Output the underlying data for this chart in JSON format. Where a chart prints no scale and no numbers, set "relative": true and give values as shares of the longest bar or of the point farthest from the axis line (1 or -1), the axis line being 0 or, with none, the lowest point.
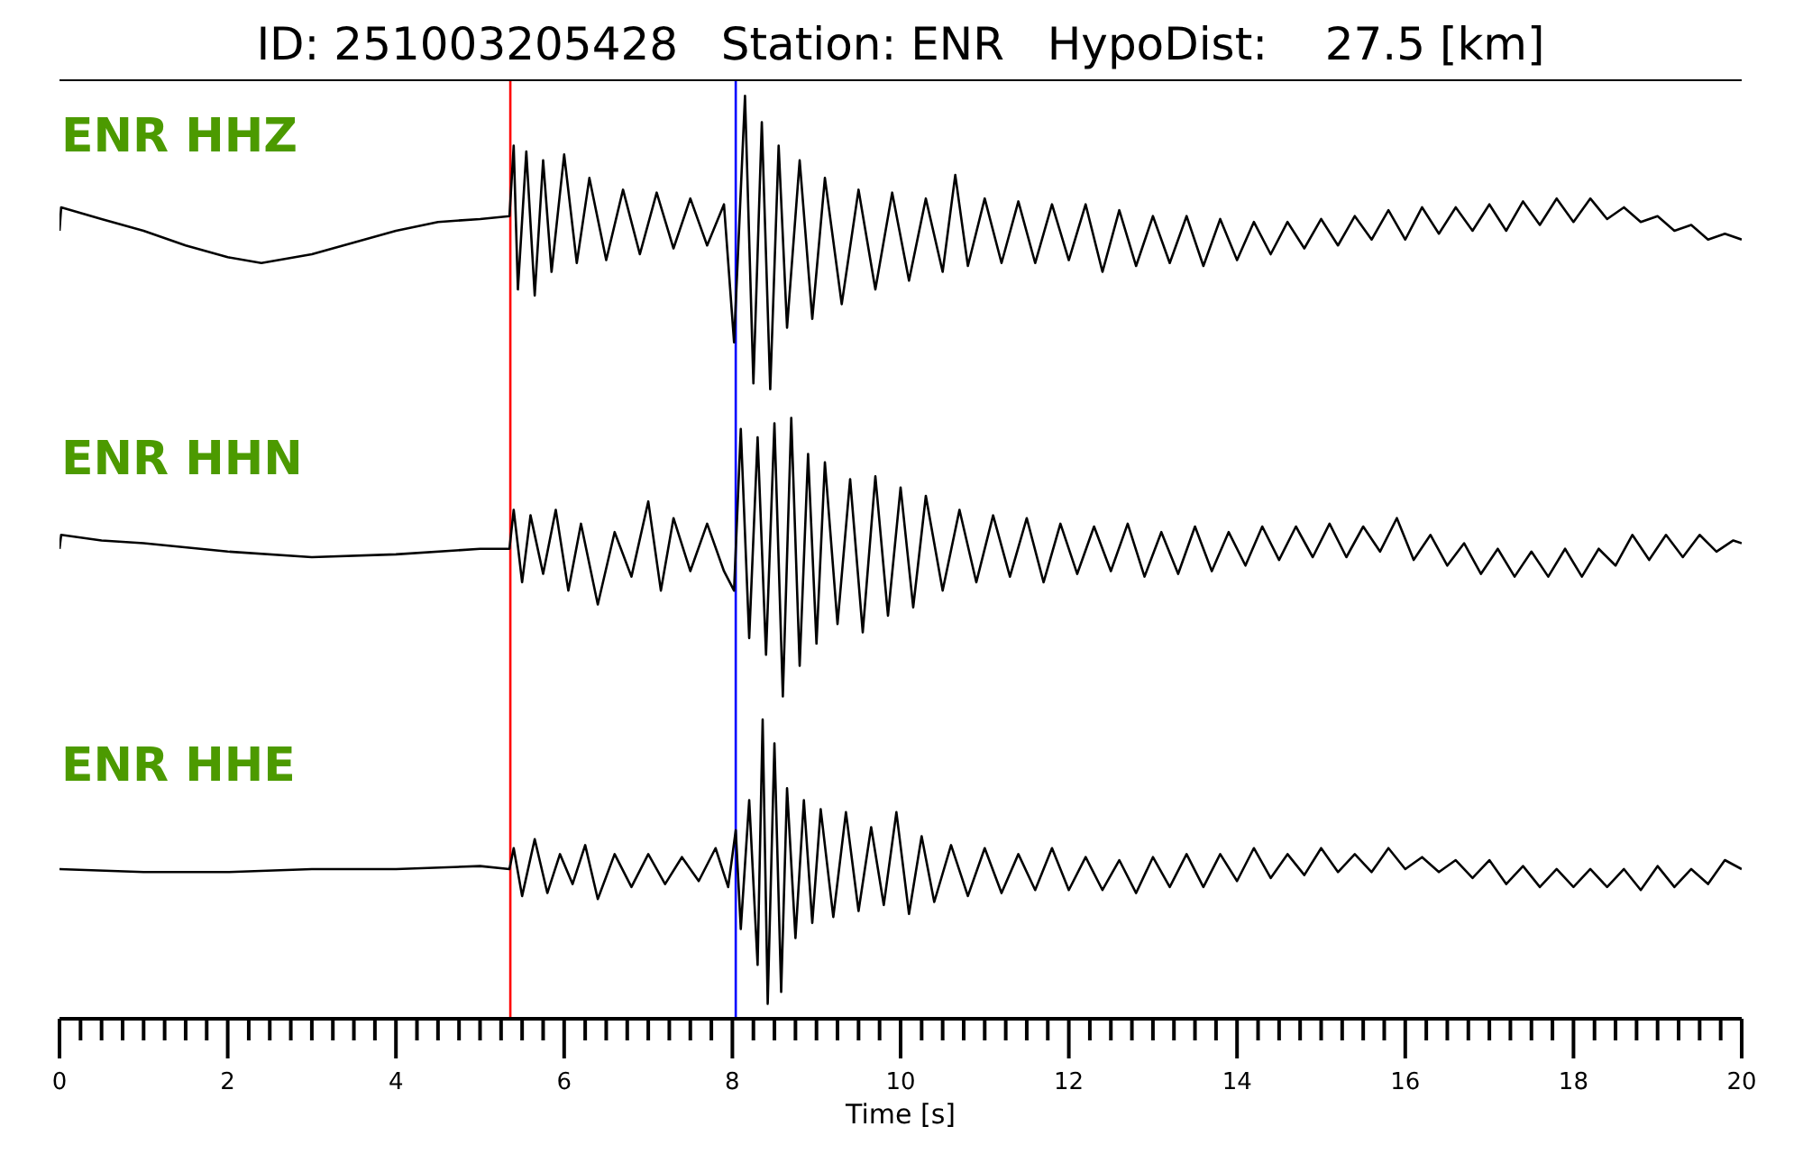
{
  "chart_data": [
    {
      "type": "line",
      "relative": true,
      "title": "ID: 251003205428   Station: ENR   HypoDist:    27.5 [km]",
      "xlim": [
        0,
        20
      ],
      "tick_labels": false,
      "ref_lines": [
        {
          "axis": "x",
          "value": 5.36,
          "color": "#ff0000"
        },
        {
          "axis": "x",
          "value": 8.04,
          "color": "#0000ff"
        }
      ],
      "x": [
        0,
        0.02,
        0.5,
        1,
        1.5,
        2,
        2.4,
        3,
        3.5,
        4,
        4.5,
        5,
        5.35,
        5.4,
        5.45,
        5.55,
        5.65,
        5.75,
        5.85,
        6.0,
        6.15,
        6.3,
        6.5,
        6.7,
        6.9,
        7.1,
        7.3,
        7.5,
        7.7,
        7.9,
        8.02,
        8.15,
        8.25,
        8.35,
        8.45,
        8.55,
        8.65,
        8.8,
        8.95,
        9.1,
        9.3,
        9.5,
        9.7,
        9.9,
        10.1,
        10.3,
        10.5,
        10.65,
        10.8,
        11.0,
        11.2,
        11.4,
        11.6,
        11.8,
        12.0,
        12.2,
        12.4,
        12.6,
        12.8,
        13.0,
        13.2,
        13.4,
        13.6,
        13.8,
        14.0,
        14.2,
        14.4,
        14.6,
        14.8,
        15.0,
        15.2,
        15.4,
        15.6,
        15.8,
        16.0,
        16.2,
        16.4,
        16.6,
        16.8,
        17.0,
        17.2,
        17.4,
        17.6,
        17.8,
        18.0,
        18.2,
        18.4,
        18.6,
        18.8,
        19.0,
        19.2,
        19.4,
        19.6,
        19.8,
        20
      ],
      "series": [
        {
          "name": "ENR HHZ",
          "color": "#000000",
          "values": [
            0.54,
            0.62,
            0.58,
            0.54,
            0.49,
            0.45,
            0.43,
            0.46,
            0.5,
            0.54,
            0.57,
            0.58,
            0.59,
            0.83,
            0.34,
            0.81,
            0.32,
            0.78,
            0.4,
            0.8,
            0.43,
            0.72,
            0.44,
            0.68,
            0.46,
            0.67,
            0.48,
            0.65,
            0.49,
            0.63,
            0.16,
            1,
            0.02,
            0.91,
            0,
            0.83,
            0.21,
            0.78,
            0.24,
            0.72,
            0.29,
            0.68,
            0.34,
            0.67,
            0.37,
            0.65,
            0.4,
            0.73,
            0.42,
            0.65,
            0.43,
            0.64,
            0.43,
            0.63,
            0.44,
            0.63,
            0.4,
            0.61,
            0.42,
            0.59,
            0.43,
            0.59,
            0.42,
            0.58,
            0.44,
            0.57,
            0.46,
            0.57,
            0.48,
            0.58,
            0.49,
            0.59,
            0.51,
            0.61,
            0.51,
            0.62,
            0.53,
            0.62,
            0.54,
            0.63,
            0.54,
            0.64,
            0.56,
            0.65,
            0.57,
            0.65,
            0.58,
            0.62,
            0.57,
            0.59,
            0.54,
            0.56,
            0.51,
            0.53,
            0.51
          ]
        }
      ]
    },
    {
      "type": "line",
      "relative": true,
      "xlim": [
        0,
        20
      ],
      "tick_labels": false,
      "ref_lines": [
        {
          "axis": "x",
          "value": 5.36,
          "color": "#ff0000"
        },
        {
          "axis": "x",
          "value": 8.04,
          "color": "#0000ff"
        }
      ],
      "x": [
        0,
        0.02,
        0.5,
        1,
        2,
        3,
        4,
        5,
        5.35,
        5.4,
        5.5,
        5.6,
        5.75,
        5.9,
        6.05,
        6.2,
        6.4,
        6.6,
        6.8,
        7.0,
        7.15,
        7.3,
        7.5,
        7.7,
        7.9,
        8.02,
        8.1,
        8.2,
        8.3,
        8.4,
        8.5,
        8.6,
        8.7,
        8.8,
        8.9,
        9.0,
        9.1,
        9.25,
        9.4,
        9.55,
        9.7,
        9.85,
        10.0,
        10.15,
        10.3,
        10.5,
        10.7,
        10.9,
        11.1,
        11.3,
        11.5,
        11.7,
        11.9,
        12.1,
        12.3,
        12.5,
        12.7,
        12.9,
        13.1,
        13.3,
        13.5,
        13.7,
        13.9,
        14.1,
        14.3,
        14.5,
        14.7,
        14.9,
        15.1,
        15.3,
        15.5,
        15.7,
        15.9,
        16.1,
        16.3,
        16.5,
        16.7,
        16.9,
        17.1,
        17.3,
        17.5,
        17.7,
        17.9,
        18.1,
        18.3,
        18.5,
        18.7,
        18.9,
        19.1,
        19.3,
        19.5,
        19.7,
        19.9,
        20
      ],
      "series": [
        {
          "name": "ENR HHN",
          "color": "#000000",
          "values": [
            0.53,
            0.58,
            0.56,
            0.55,
            0.52,
            0.5,
            0.51,
            0.53,
            0.53,
            0.67,
            0.41,
            0.65,
            0.44,
            0.67,
            0.38,
            0.62,
            0.33,
            0.59,
            0.43,
            0.7,
            0.38,
            0.64,
            0.45,
            0.62,
            0.45,
            0.38,
            0.96,
            0.21,
            0.93,
            0.15,
            0.98,
            0,
            1,
            0.11,
            0.87,
            0.19,
            0.84,
            0.26,
            0.78,
            0.23,
            0.79,
            0.29,
            0.75,
            0.32,
            0.72,
            0.38,
            0.67,
            0.41,
            0.65,
            0.43,
            0.64,
            0.41,
            0.62,
            0.44,
            0.61,
            0.45,
            0.62,
            0.43,
            0.59,
            0.44,
            0.61,
            0.45,
            0.59,
            0.47,
            0.61,
            0.49,
            0.61,
            0.5,
            0.62,
            0.5,
            0.61,
            0.52,
            0.64,
            0.49,
            0.58,
            0.47,
            0.55,
            0.44,
            0.53,
            0.43,
            0.52,
            0.43,
            0.53,
            0.43,
            0.53,
            0.47,
            0.58,
            0.49,
            0.58,
            0.5,
            0.58,
            0.52,
            0.56,
            0.55
          ]
        }
      ]
    },
    {
      "type": "line",
      "relative": true,
      "xlim": [
        0,
        20
      ],
      "tick_labels": "x",
      "xlabel": "Time [s]",
      "xticks": [
        0,
        {
          "value": 0.25,
          "label": null
        },
        {
          "value": 0.5,
          "label": null
        },
        {
          "value": 0.75,
          "label": null
        },
        {
          "value": 1,
          "label": null
        },
        {
          "value": 1.25,
          "label": null
        },
        {
          "value": 1.5,
          "label": null
        },
        {
          "value": 1.75,
          "label": null
        },
        2,
        {
          "value": 2.25,
          "label": null
        },
        {
          "value": 2.5,
          "label": null
        },
        {
          "value": 2.75,
          "label": null
        },
        {
          "value": 3,
          "label": null
        },
        {
          "value": 3.25,
          "label": null
        },
        {
          "value": 3.5,
          "label": null
        },
        {
          "value": 3.75,
          "label": null
        },
        4,
        {
          "value": 4.25,
          "label": null
        },
        {
          "value": 4.5,
          "label": null
        },
        {
          "value": 4.75,
          "label": null
        },
        {
          "value": 5,
          "label": null
        },
        {
          "value": 5.25,
          "label": null
        },
        {
          "value": 5.5,
          "label": null
        },
        {
          "value": 5.75,
          "label": null
        },
        6,
        {
          "value": 6.25,
          "label": null
        },
        {
          "value": 6.5,
          "label": null
        },
        {
          "value": 6.75,
          "label": null
        },
        {
          "value": 7,
          "label": null
        },
        {
          "value": 7.25,
          "label": null
        },
        {
          "value": 7.5,
          "label": null
        },
        {
          "value": 7.75,
          "label": null
        },
        8,
        {
          "value": 8.25,
          "label": null
        },
        {
          "value": 8.5,
          "label": null
        },
        {
          "value": 8.75,
          "label": null
        },
        {
          "value": 9,
          "label": null
        },
        {
          "value": 9.25,
          "label": null
        },
        {
          "value": 9.5,
          "label": null
        },
        {
          "value": 9.75,
          "label": null
        },
        10,
        {
          "value": 10.25,
          "label": null
        },
        {
          "value": 10.5,
          "label": null
        },
        {
          "value": 10.75,
          "label": null
        },
        {
          "value": 11,
          "label": null
        },
        {
          "value": 11.25,
          "label": null
        },
        {
          "value": 11.5,
          "label": null
        },
        {
          "value": 11.75,
          "label": null
        },
        12,
        {
          "value": 12.25,
          "label": null
        },
        {
          "value": 12.5,
          "label": null
        },
        {
          "value": 12.75,
          "label": null
        },
        {
          "value": 13,
          "label": null
        },
        {
          "value": 13.25,
          "label": null
        },
        {
          "value": 13.5,
          "label": null
        },
        {
          "value": 13.75,
          "label": null
        },
        14,
        {
          "value": 14.25,
          "label": null
        },
        {
          "value": 14.5,
          "label": null
        },
        {
          "value": 14.75,
          "label": null
        },
        {
          "value": 15,
          "label": null
        },
        {
          "value": 15.25,
          "label": null
        },
        {
          "value": 15.5,
          "label": null
        },
        {
          "value": 15.75,
          "label": null
        },
        16,
        {
          "value": 16.25,
          "label": null
        },
        {
          "value": 16.5,
          "label": null
        },
        {
          "value": 16.75,
          "label": null
        },
        {
          "value": 17,
          "label": null
        },
        {
          "value": 17.25,
          "label": null
        },
        {
          "value": 17.5,
          "label": null
        },
        {
          "value": 17.75,
          "label": null
        },
        18,
        {
          "value": 18.25,
          "label": null
        },
        {
          "value": 18.5,
          "label": null
        },
        {
          "value": 18.75,
          "label": null
        },
        {
          "value": 19,
          "label": null
        },
        {
          "value": 19.25,
          "label": null
        },
        {
          "value": 19.5,
          "label": null
        },
        {
          "value": 19.75,
          "label": null
        },
        20
      ],
      "ref_lines": [
        {
          "axis": "x",
          "value": 5.36,
          "color": "#ff0000"
        },
        {
          "axis": "x",
          "value": 8.04,
          "color": "#0000ff"
        }
      ],
      "x": [
        0,
        1,
        2,
        3,
        4,
        5,
        5.35,
        5.4,
        5.5,
        5.65,
        5.8,
        5.95,
        6.1,
        6.25,
        6.4,
        6.6,
        6.8,
        7.0,
        7.2,
        7.4,
        7.6,
        7.8,
        7.95,
        8.04,
        8.1,
        8.2,
        8.3,
        8.36,
        8.42,
        8.5,
        8.58,
        8.65,
        8.75,
        8.85,
        8.95,
        9.05,
        9.2,
        9.35,
        9.5,
        9.65,
        9.8,
        9.95,
        10.1,
        10.25,
        10.4,
        10.6,
        10.8,
        11.0,
        11.2,
        11.4,
        11.6,
        11.8,
        12.0,
        12.2,
        12.4,
        12.6,
        12.8,
        13.0,
        13.2,
        13.4,
        13.6,
        13.8,
        14.0,
        14.2,
        14.4,
        14.6,
        14.8,
        15.0,
        15.2,
        15.4,
        15.6,
        15.8,
        16.0,
        16.2,
        16.4,
        16.6,
        16.8,
        17.0,
        17.2,
        17.4,
        17.6,
        17.8,
        18.0,
        18.2,
        18.4,
        18.6,
        18.8,
        19.0,
        19.2,
        19.4,
        19.6,
        19.8,
        20
      ],
      "series": [
        {
          "name": "ENR HHE",
          "color": "#000000",
          "values": [
            0.5,
            0.49,
            0.49,
            0.5,
            0.5,
            0.51,
            0.5,
            0.57,
            0.41,
            0.6,
            0.42,
            0.55,
            0.45,
            0.58,
            0.4,
            0.55,
            0.44,
            0.55,
            0.45,
            0.54,
            0.46,
            0.57,
            0.44,
            0.63,
            0.3,
            0.73,
            0.18,
            1,
            0.05,
            0.92,
            0.09,
            0.77,
            0.27,
            0.73,
            0.32,
            0.7,
            0.34,
            0.69,
            0.36,
            0.64,
            0.38,
            0.69,
            0.35,
            0.61,
            0.39,
            0.58,
            0.41,
            0.57,
            0.42,
            0.55,
            0.43,
            0.57,
            0.43,
            0.54,
            0.43,
            0.53,
            0.42,
            0.54,
            0.44,
            0.55,
            0.44,
            0.55,
            0.46,
            0.57,
            0.47,
            0.55,
            0.48,
            0.57,
            0.49,
            0.55,
            0.49,
            0.57,
            0.5,
            0.54,
            0.49,
            0.53,
            0.47,
            0.53,
            0.45,
            0.51,
            0.44,
            0.5,
            0.44,
            0.5,
            0.44,
            0.5,
            0.43,
            0.51,
            0.44,
            0.5,
            0.45,
            0.53,
            0.5
          ]
        }
      ]
    }
  ]
}
